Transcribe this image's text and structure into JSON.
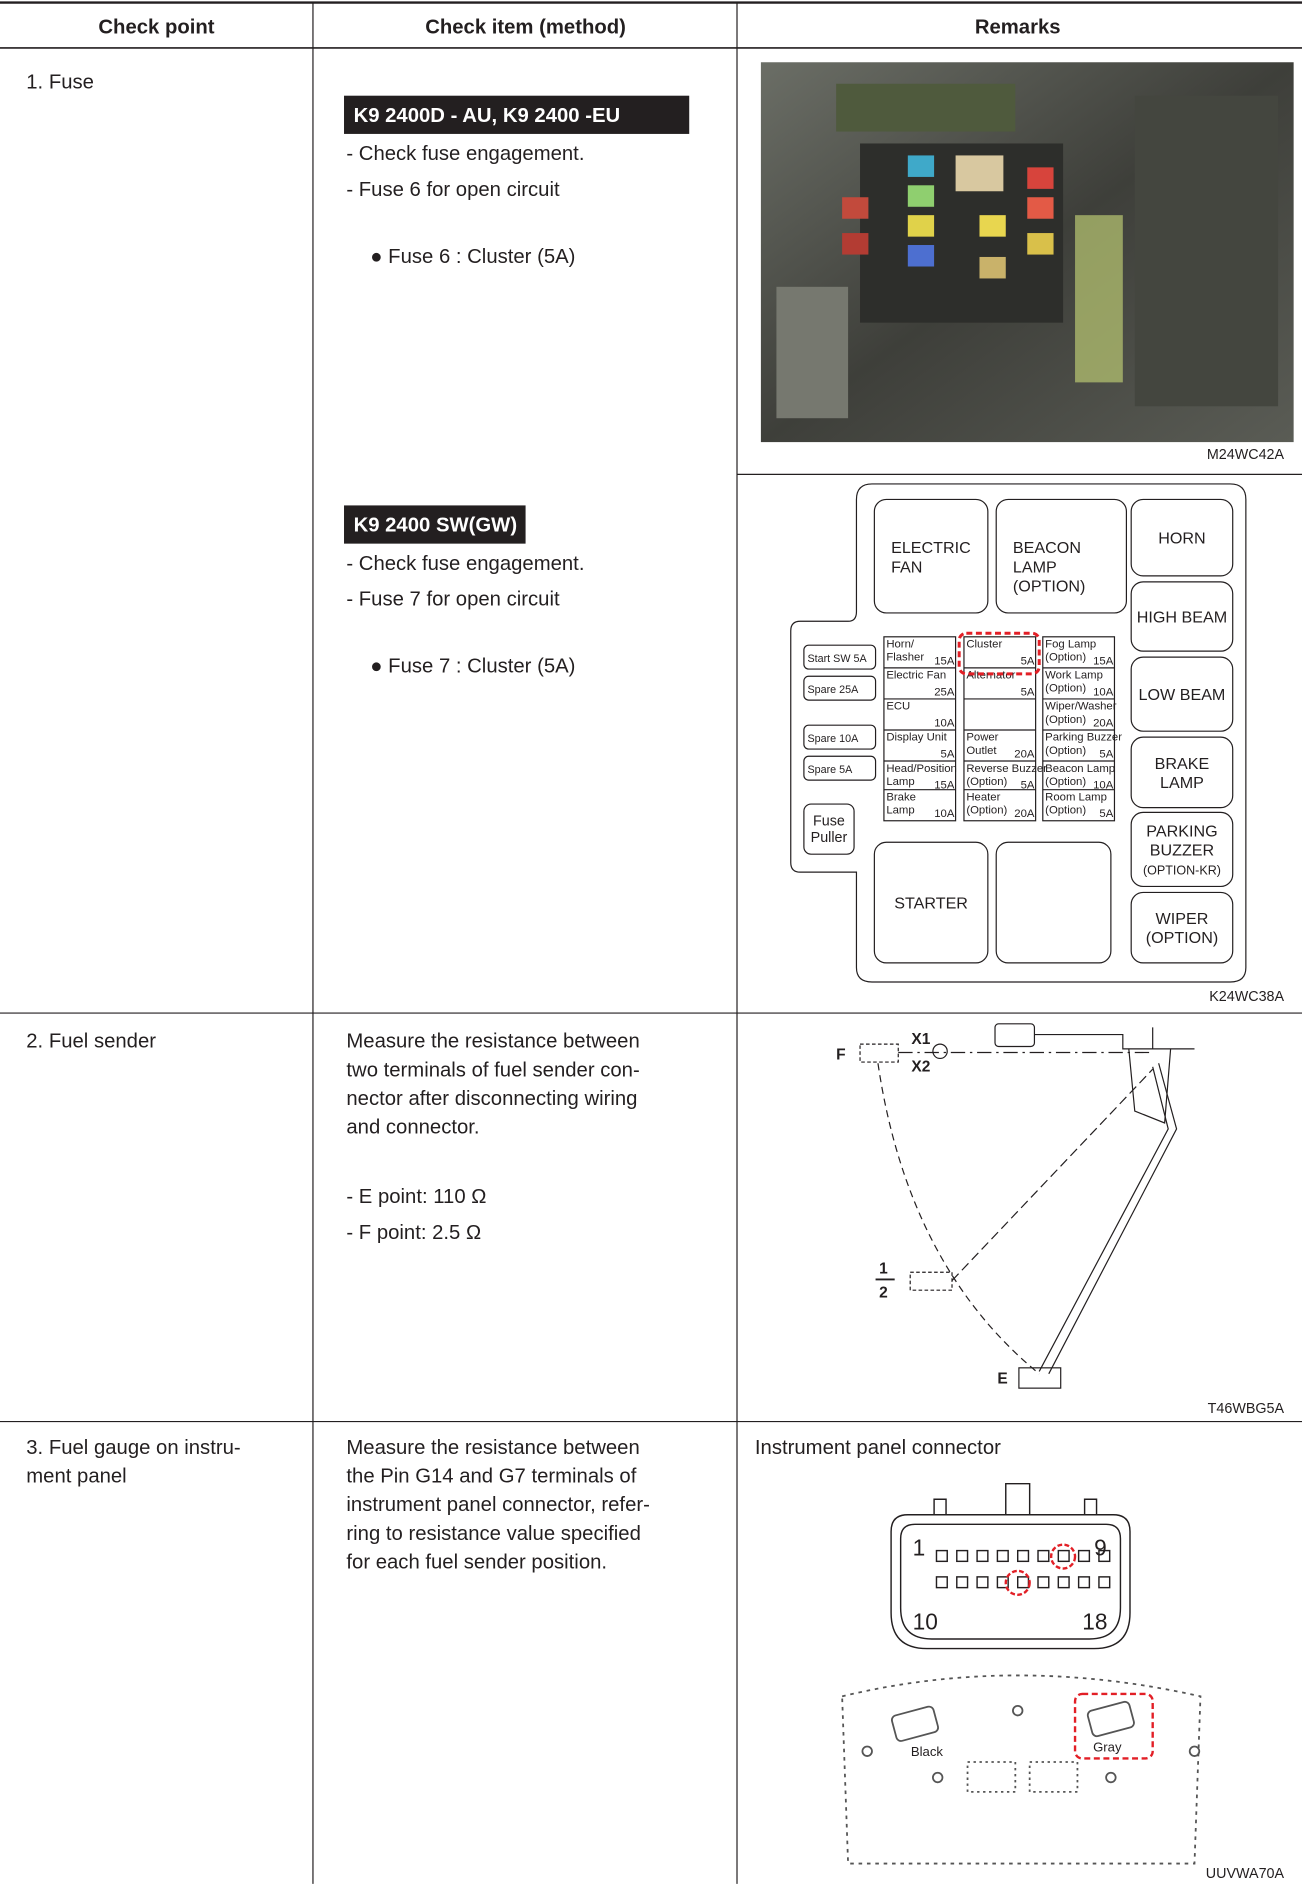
{
  "table": {
    "headers": [
      "Check point",
      "Check item (method)",
      "Remarks"
    ],
    "rows": [
      {
        "check_point": [
          "1. Fuse"
        ],
        "items": [
          {
            "model": "K9 2400D - AU, K9 2400 -EU",
            "method": [
              "- Check fuse engagement.",
              "- Fuse 6 for open circuit"
            ],
            "bullet": "● Fuse 6 : Cluster (5A)",
            "figure_code": "M24WC42A"
          },
          {
            "model": "K9 2400 SW(GW)",
            "method": [
              "- Check fuse engagement.",
              "- Fuse 7 for open circuit"
            ],
            "bullet": "● Fuse 7 : Cluster (5A)",
            "figure_code": "K24WC38A"
          }
        ]
      },
      {
        "check_point": [
          "2. Fuel sender"
        ],
        "method": [
          "Measure the resistance between",
          "two terminals of fuel sender con-",
          "nector after disconnecting wiring",
          "and connector."
        ],
        "specs": [
          "- E point: 110 Ω",
          "- F point: 2.5 Ω"
        ],
        "figure_code": "T46WBG5A"
      },
      {
        "check_point": [
          "3. Fuel gauge on instru-",
          "ment panel"
        ],
        "method": [
          "Measure the resistance between",
          "the Pin G14 and G7 terminals of",
          "instrument panel connector, refer-",
          "ring to resistance value specified",
          "for each fuel sender position."
        ],
        "caption": "Instrument panel connector",
        "figure_code": "UUVWA70A"
      }
    ]
  },
  "fuse_box": {
    "relays": [
      {
        "lines": [
          "ELECTRIC",
          "FAN"
        ]
      },
      {
        "lines": [
          "BEACON",
          "LAMP",
          "(OPTION)"
        ]
      },
      {
        "lines": [
          "HORN"
        ]
      },
      {
        "lines": [
          "HIGH BEAM"
        ]
      },
      {
        "lines": [
          "LOW BEAM"
        ]
      },
      {
        "lines": [
          "BRAKE",
          "LAMP"
        ]
      },
      {
        "lines": [
          "PARKING",
          "BUZZER",
          "(OPTION-KR)"
        ]
      },
      {
        "lines": [
          "WIPER",
          "(OPTION)"
        ]
      },
      {
        "lines": [
          "STARTER"
        ]
      }
    ],
    "spares": [
      "Start SW 5A",
      "Spare  25A",
      "Spare 10A",
      "Spare  5A"
    ],
    "puller": [
      "Fuse",
      "Puller"
    ],
    "fuses": [
      {
        "lines": [
          "Horn/",
          "Flasher"
        ],
        "rating": "15A"
      },
      {
        "lines": [
          "Electric Fan"
        ],
        "rating": "25A"
      },
      {
        "lines": [
          "ECU"
        ],
        "rating": "10A"
      },
      {
        "lines": [
          "Display Unit"
        ],
        "rating": "5A"
      },
      {
        "lines": [
          "Head/Position",
          "Lamp"
        ],
        "rating": "15A"
      },
      {
        "lines": [
          "Brake",
          "Lamp"
        ],
        "rating": "10A"
      },
      {
        "lines": [
          "Cluster"
        ],
        "rating": "5A"
      },
      {
        "lines": [
          "Alternator"
        ],
        "rating": "5A"
      },
      {
        "lines": [
          "Power",
          "Outlet"
        ],
        "rating": "20A"
      },
      {
        "lines": [
          "Reverse Buzzer",
          "(Option)"
        ],
        "rating": "5A"
      },
      {
        "lines": [
          "Heater",
          "(Option)"
        ],
        "rating": "20A"
      },
      {
        "lines": [
          "Fog Lamp",
          "(Option)"
        ],
        "rating": "15A"
      },
      {
        "lines": [
          "Work Lamp",
          "(Option)"
        ],
        "rating": "10A"
      },
      {
        "lines": [
          "Wiper/Washer",
          "(Option)"
        ],
        "rating": "20A"
      },
      {
        "lines": [
          "Parking Buzzer",
          "(Option)"
        ],
        "rating": "5A"
      },
      {
        "lines": [
          "Beacon Lamp",
          "(Option)"
        ],
        "rating": "10A"
      },
      {
        "lines": [
          "Room Lamp",
          "(Option)"
        ],
        "rating": "5A"
      }
    ]
  },
  "fuel_sender": {
    "labels": [
      "X1",
      "X2",
      "F",
      "1",
      "2",
      "E"
    ]
  },
  "connector": {
    "pins": [
      "1",
      "9",
      "10",
      "18"
    ],
    "colors": [
      "Black",
      "Gray"
    ]
  }
}
